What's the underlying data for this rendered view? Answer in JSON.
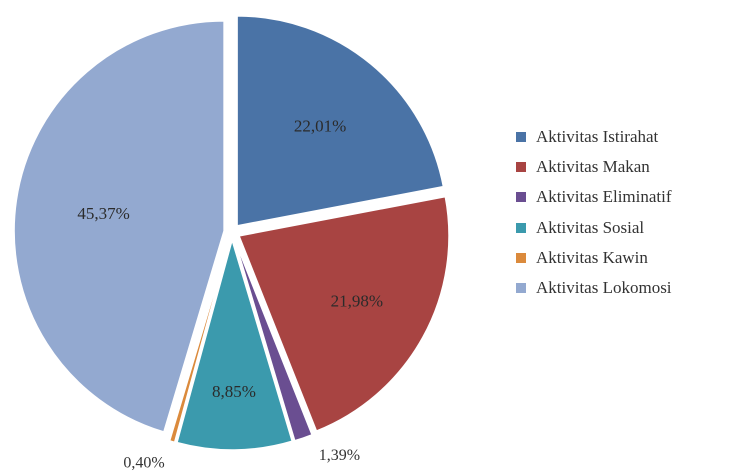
{
  "chart_data": {
    "type": "pie",
    "labels": [
      "Aktivitas Istirahat",
      "Aktivitas Makan",
      "Aktivitas Eliminatif",
      "Aktivitas Sosial",
      "Aktivitas Kawin",
      "Aktivitas Lokomosi"
    ],
    "values": [
      22.01,
      21.98,
      1.39,
      8.85,
      0.4,
      45.37
    ],
    "value_labels": [
      "22,01%",
      "21,98%",
      "1,39%",
      "8,85%",
      "0,40%",
      "45,37%"
    ],
    "colors": [
      "#4a73a6",
      "#a84442",
      "#6a4e91",
      "#3b9aad",
      "#db8a3c",
      "#93a9d0"
    ],
    "exploded": true,
    "legend_position": "right"
  }
}
